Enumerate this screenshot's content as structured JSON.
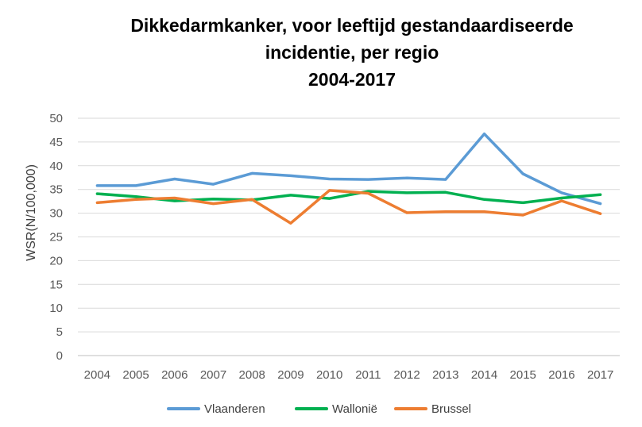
{
  "chart_data": {
    "type": "line",
    "title_lines": [
      "Dikkedarmkanker, voor leeftijd gestandaardiseerde",
      "incidentie, per regio",
      "2004-2017"
    ],
    "xlabel": "",
    "ylabel": "WSR(N/100,000)",
    "ylim": [
      0,
      50
    ],
    "yticks": [
      "0",
      "5",
      "10",
      "15",
      "20",
      "25",
      "30",
      "35",
      "40",
      "45",
      "50"
    ],
    "categories": [
      "2004",
      "2005",
      "2006",
      "2007",
      "2008",
      "2009",
      "2010",
      "2011",
      "2012",
      "2013",
      "2014",
      "2015",
      "2016",
      "2017"
    ],
    "grid": "horizontal",
    "legend_position": "bottom",
    "series": [
      {
        "name": "Vlaanderen",
        "color": "#5B9BD5",
        "values": [
          35.8,
          35.8,
          37.2,
          36.1,
          38.4,
          37.9,
          37.2,
          37.1,
          37.4,
          37.1,
          46.7,
          38.3,
          34.3,
          32.0
        ]
      },
      {
        "name": "Wallonië",
        "color": "#00B050",
        "values": [
          34.1,
          33.5,
          32.6,
          33.0,
          32.8,
          33.8,
          33.1,
          34.6,
          34.3,
          34.4,
          32.9,
          32.2,
          33.2,
          33.9
        ]
      },
      {
        "name": "Brussel",
        "color": "#ED7D31",
        "values": [
          32.2,
          32.9,
          33.2,
          32.0,
          32.9,
          27.9,
          34.8,
          34.2,
          30.1,
          30.3,
          30.3,
          29.6,
          32.6,
          29.9
        ]
      }
    ]
  }
}
